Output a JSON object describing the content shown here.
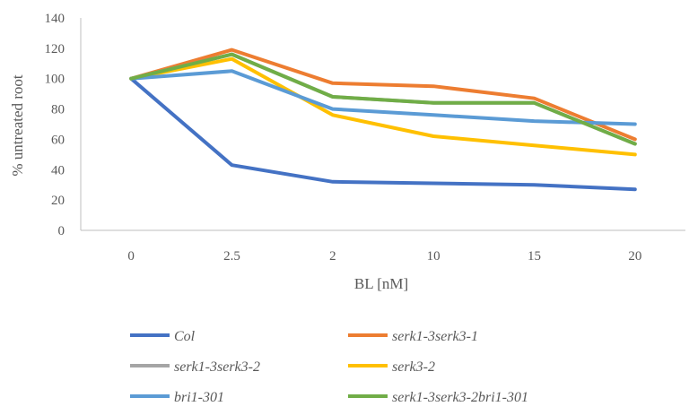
{
  "chart_data": {
    "type": "line",
    "categories": [
      "0",
      "2.5",
      "2",
      "10",
      "15",
      "20"
    ],
    "xlabel": "BL  [nM]",
    "ylabel": "% untreated root",
    "ylim": [
      0,
      140
    ],
    "yticks": [
      "0",
      "20",
      "40",
      "60",
      "80",
      "100",
      "120",
      "140"
    ],
    "grid": false,
    "legend_position": "bottom",
    "series": [
      {
        "name": "Col",
        "color": "#4472C4",
        "values": [
          100,
          43,
          32,
          31,
          30,
          27
        ]
      },
      {
        "name": "serk1-3serk3-1",
        "color": "#ED7D31",
        "values": [
          100,
          119,
          97,
          95,
          87,
          60
        ]
      },
      {
        "name": "serk1-3serk3-2",
        "color": "#A5A5A5",
        "values": [
          100,
          116,
          88,
          84,
          84,
          57
        ]
      },
      {
        "name": "serk3-2",
        "color": "#FFC000",
        "values": [
          100,
          113,
          76,
          62,
          56,
          50
        ]
      },
      {
        "name": "bri1-301",
        "color": "#5B9BD5",
        "values": [
          100,
          105,
          80,
          76,
          72,
          70
        ]
      },
      {
        "name": "serk1-3serk3-2bri1-301",
        "color": "#70AD47",
        "values": [
          100,
          116,
          88,
          84,
          84,
          57
        ]
      }
    ]
  }
}
